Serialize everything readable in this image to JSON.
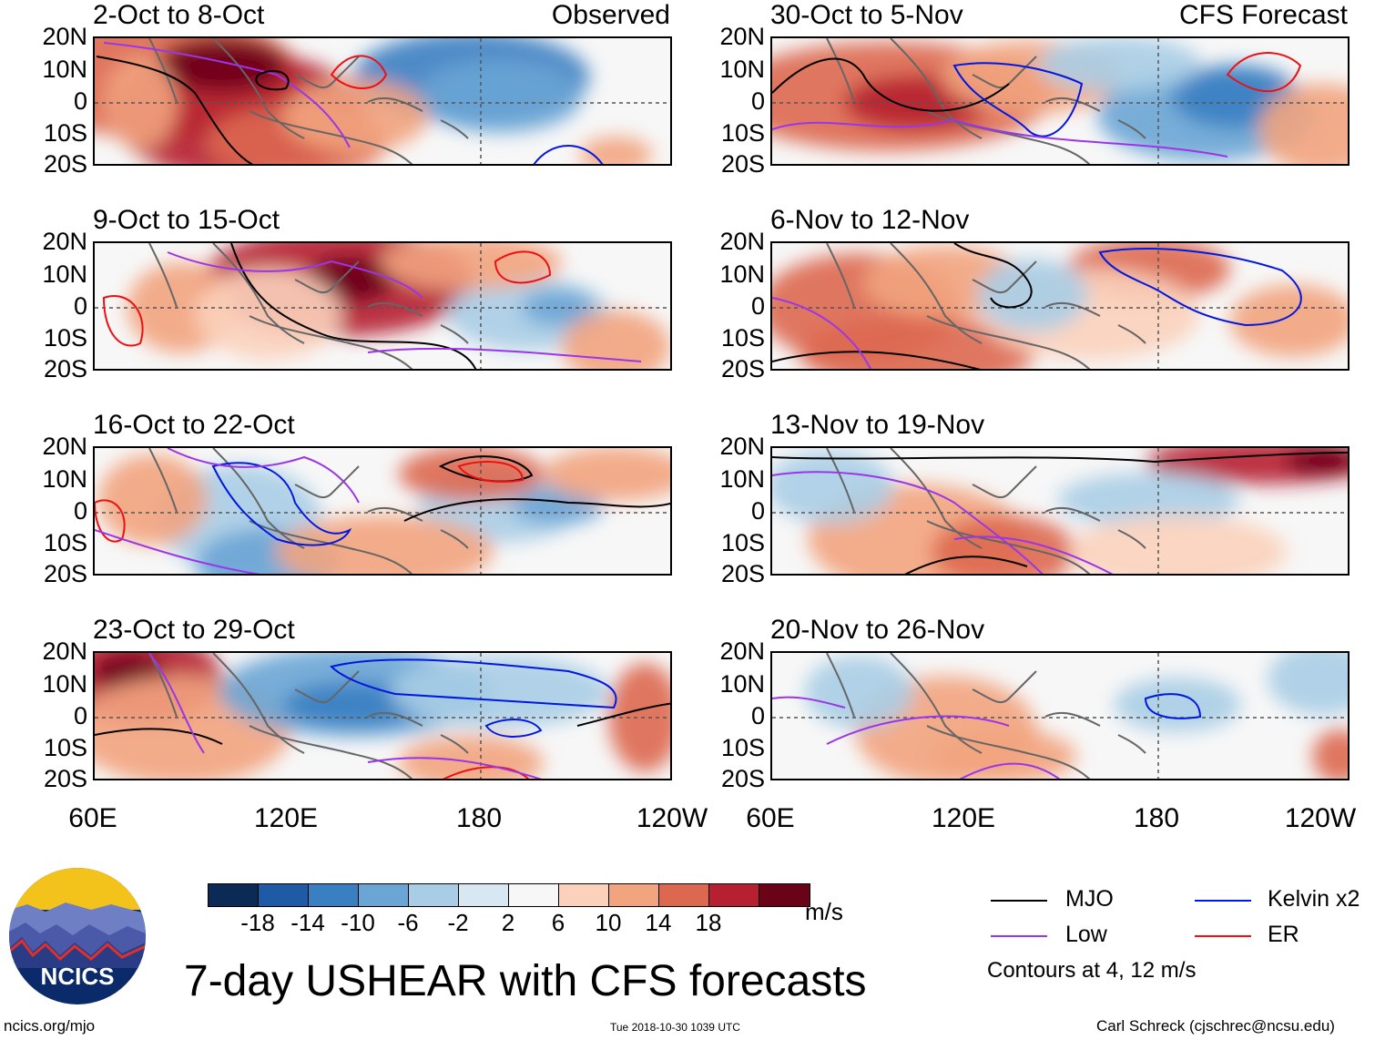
{
  "panels": [
    {
      "title": "2-Oct to 8-Oct",
      "label": "Observed"
    },
    {
      "title": "30-Oct to 5-Nov",
      "label": "CFS Forecast"
    },
    {
      "title": "9-Oct to 15-Oct",
      "label": ""
    },
    {
      "title": "6-Nov to 12-Nov",
      "label": ""
    },
    {
      "title": "16-Oct to 22-Oct",
      "label": ""
    },
    {
      "title": "13-Nov to 19-Nov",
      "label": ""
    },
    {
      "title": "23-Oct to 29-Oct",
      "label": ""
    },
    {
      "title": "20-Nov to 26-Nov",
      "label": ""
    }
  ],
  "lat_labels": [
    "20N",
    "10N",
    "0",
    "10S",
    "20S"
  ],
  "lon_labels": [
    "60E",
    "120E",
    "180",
    "120W"
  ],
  "colorbar": {
    "ticks": [
      "-18",
      "-14",
      "-10",
      "-6",
      "-2",
      "2",
      "6",
      "10",
      "14",
      "18"
    ],
    "colors": [
      "#0b2a55",
      "#1f5aa6",
      "#3a7fc2",
      "#6aa5d5",
      "#a9cde6",
      "#d7e8f3",
      "#f7f7f7",
      "#fbd1bb",
      "#f2a47e",
      "#dd6850",
      "#b62030",
      "#6b0318"
    ],
    "units": "m/s"
  },
  "legend": {
    "items": [
      {
        "name": "MJO",
        "color": "#000000"
      },
      {
        "name": "Kelvin x2",
        "color": "#0018e0"
      },
      {
        "name": "Low",
        "color": "#9a36e8"
      },
      {
        "name": "ER",
        "color": "#ee1010"
      }
    ],
    "note": "Contours at 4, 12 m/s"
  },
  "footer": {
    "title": "7-day USHEAR with CFS forecasts",
    "url": "ncics.org/mjo",
    "timestamp": "Tue 2018-10-30 1039 UTC",
    "author": "Carl Schreck (cjschrec@ncsu.edu)",
    "logo_text": "NCICS"
  }
}
